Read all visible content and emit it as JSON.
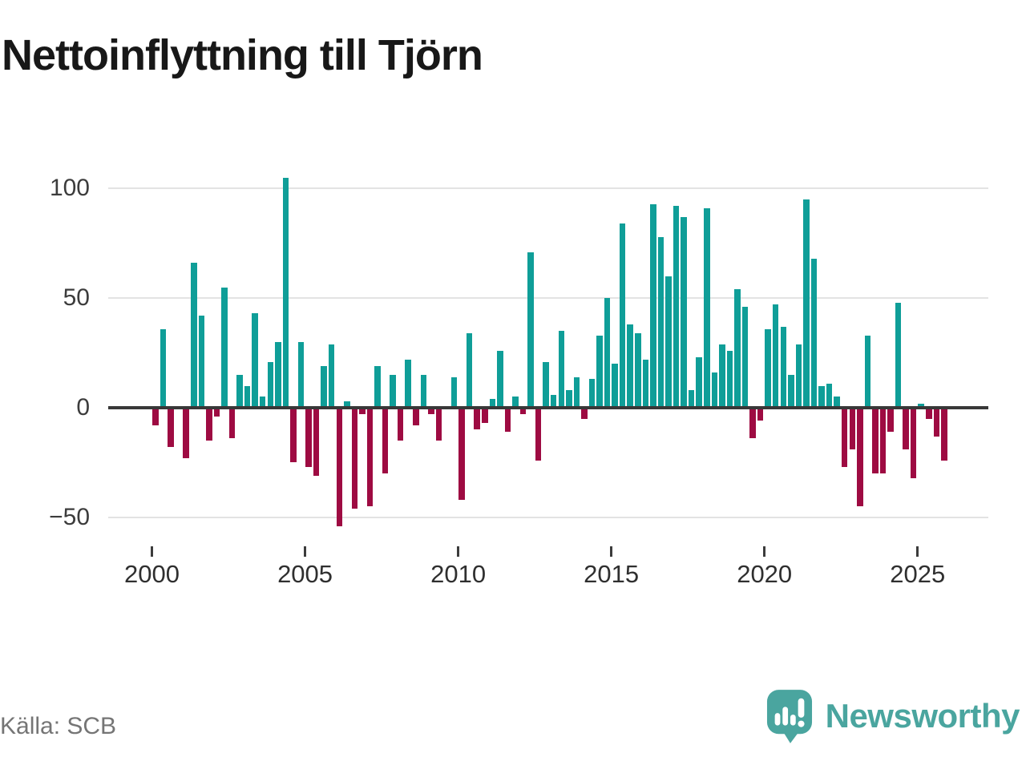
{
  "title": "Nettoinflyttning till Tjörn",
  "source": "Källa: SCB",
  "brand": {
    "name": "Newsworthy",
    "logo_icon": "speech-bubble-bar-chart-icon",
    "color": "#4aa59f"
  },
  "colors": {
    "positive_bar": "#0f9e98",
    "negative_bar": "#9e0b42",
    "gridline": "#e3e3e3",
    "zero_axis": "#383838",
    "text": "#2f2f2f"
  },
  "chart_data": {
    "type": "bar",
    "title": "Nettoinflyttning till Tjörn",
    "xlabel": "",
    "ylabel": "",
    "frequency": "quarterly",
    "x_start": "2000-Q1",
    "x_end": "2025-Q4",
    "x_tick_labels": [
      "2000",
      "2005",
      "2010",
      "2015",
      "2020",
      "2025"
    ],
    "y_ticks": [
      100,
      50,
      0,
      -50
    ],
    "y_tick_labels": [
      "100",
      "50",
      "0",
      "−50"
    ],
    "ylim": [
      -62,
      112
    ],
    "grid": "horizontal",
    "legend": "none",
    "values": [
      -8,
      36,
      -18,
      0,
      -23,
      66,
      42,
      -15,
      -4,
      55,
      -14,
      15,
      10,
      43,
      5,
      21,
      30,
      105,
      -25,
      30,
      -27,
      -31,
      19,
      29,
      -54,
      3,
      -46,
      -3,
      -45,
      19,
      -30,
      15,
      -15,
      22,
      -8,
      15,
      -3,
      -15,
      0,
      14,
      -42,
      34,
      -10,
      -7,
      4,
      26,
      -11,
      5,
      -3,
      71,
      -24,
      21,
      6,
      35,
      8,
      14,
      -5,
      13,
      33,
      50,
      20,
      84,
      38,
      34,
      22,
      93,
      78,
      60,
      92,
      87,
      8,
      23,
      91,
      16,
      29,
      26,
      54,
      46,
      -14,
      -6,
      36,
      47,
      37,
      15,
      29,
      95,
      68,
      10,
      11,
      5,
      -27,
      -19,
      -45,
      33,
      -30,
      -30,
      -11,
      48,
      -19,
      -32,
      2,
      -5,
      -13,
      -24
    ]
  }
}
